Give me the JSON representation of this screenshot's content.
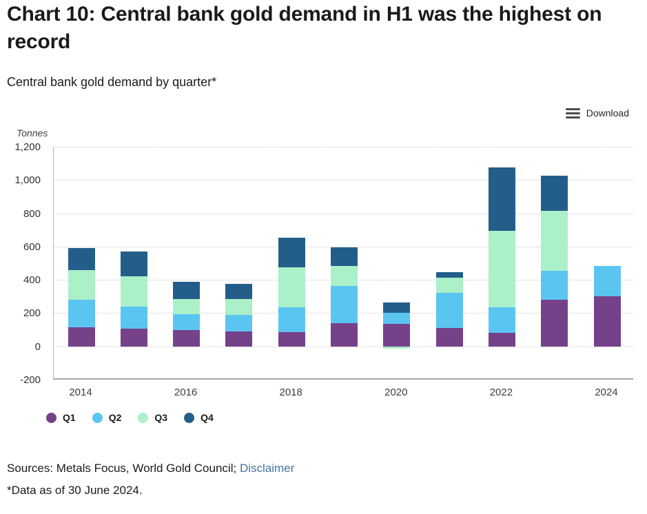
{
  "page": {
    "title": "Chart 10: Central bank gold demand in H1 was the highest on record",
    "subtitle": "Central bank gold demand by quarter*",
    "download_label": "Download",
    "sources_prefix": "Sources: Metals Focus, World Gold Council; ",
    "disclaimer_link": "Disclaimer",
    "footnote": "*Data as of 30 June 2024.",
    "unit_label": "Tonnes"
  },
  "chart_data": {
    "type": "bar",
    "stacked": true,
    "title": "Central bank gold demand by quarter*",
    "xlabel": "",
    "ylabel": "Tonnes",
    "categories": [
      "2014",
      "2015",
      "2016",
      "2017",
      "2018",
      "2019",
      "2020",
      "2021",
      "2022",
      "2023",
      "2024"
    ],
    "series": [
      {
        "name": "Q1",
        "color": "#75428A",
        "values": [
          115,
          105,
          100,
          90,
          85,
          140,
          135,
          110,
          80,
          280,
          300
        ]
      },
      {
        "name": "Q2",
        "color": "#5BC5F2",
        "values": [
          165,
          135,
          95,
          100,
          150,
          225,
          65,
          210,
          155,
          175,
          185
        ]
      },
      {
        "name": "Q3",
        "color": "#ABF0C9",
        "values": [
          180,
          180,
          90,
          95,
          240,
          120,
          -15,
          95,
          460,
          360,
          0
        ]
      },
      {
        "name": "Q4",
        "color": "#235E8B",
        "values": [
          130,
          150,
          105,
          90,
          180,
          110,
          65,
          30,
          380,
          210,
          0
        ]
      }
    ],
    "ylim": [
      -200,
      1200
    ],
    "ytick_values": [
      1200,
      1000,
      800,
      600,
      400,
      200,
      0,
      -200
    ],
    "ytick_labels": [
      "1,200",
      "1,000",
      "800",
      "600",
      "400",
      "200",
      "0",
      "-200"
    ],
    "xtick_labels": [
      "2014",
      "2016",
      "2018",
      "2020",
      "2022",
      "2024"
    ],
    "xtick_every": 2,
    "grid": "horizontal-dotted",
    "legend_position": "bottom-left"
  }
}
